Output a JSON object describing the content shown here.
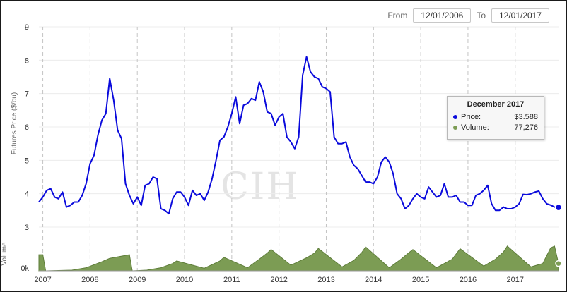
{
  "range": {
    "from_label": "From",
    "from_value": "12/01/2006",
    "to_label": "To",
    "to_value": "12/01/2017"
  },
  "watermark": "CIH",
  "tooltip": {
    "title": "December 2017",
    "price_label": "Price:",
    "price_value": "$3.588",
    "volume_label": "Volume:",
    "volume_value": "77,276"
  },
  "colors": {
    "price_line": "#0a0adc",
    "volume_fill": "#7c9c54",
    "volume_stroke": "#5e7d3a"
  },
  "chart_data": [
    {
      "type": "line",
      "ylabel": "Futures Price ($/bu)",
      "ylim": [
        3,
        9
      ],
      "yticks": [
        3,
        4,
        5,
        6,
        7,
        8,
        9
      ],
      "x_range": [
        "2006-12",
        "2017-12"
      ],
      "xticks": [
        "2007",
        "2008",
        "2009",
        "2010",
        "2011",
        "2012",
        "2013",
        "2014",
        "2015",
        "2016",
        "2017"
      ],
      "grid": true,
      "series": [
        {
          "x": [
            "2006-12",
            "2007-01",
            "2007-02",
            "2007-03",
            "2007-04",
            "2007-05",
            "2007-06",
            "2007-07",
            "2007-08",
            "2007-09",
            "2007-10",
            "2007-11",
            "2007-12",
            "2008-01",
            "2008-02",
            "2008-03",
            "2008-04",
            "2008-05",
            "2008-06",
            "2008-07",
            "2008-08",
            "2008-09",
            "2008-10",
            "2008-11",
            "2008-12",
            "2009-01",
            "2009-02",
            "2009-03",
            "2009-04",
            "2009-05",
            "2009-06",
            "2009-07",
            "2009-08",
            "2009-09",
            "2009-10",
            "2009-11",
            "2009-12",
            "2010-01",
            "2010-02",
            "2010-03",
            "2010-04",
            "2010-05",
            "2010-06",
            "2010-07",
            "2010-08",
            "2010-09",
            "2010-10",
            "2010-11",
            "2010-12",
            "2011-01",
            "2011-02",
            "2011-03",
            "2011-04",
            "2011-05",
            "2011-06",
            "2011-07",
            "2011-08",
            "2011-09",
            "2011-10",
            "2011-11",
            "2011-12",
            "2012-01",
            "2012-02",
            "2012-03",
            "2012-04",
            "2012-05",
            "2012-06",
            "2012-07",
            "2012-08",
            "2012-09",
            "2012-10",
            "2012-11",
            "2012-12",
            "2013-01",
            "2013-02",
            "2013-03",
            "2013-04",
            "2013-05",
            "2013-06",
            "2013-07",
            "2013-08",
            "2013-09",
            "2013-10",
            "2013-11",
            "2013-12",
            "2014-01",
            "2014-02",
            "2014-03",
            "2014-04",
            "2014-05",
            "2014-06",
            "2014-07",
            "2014-08",
            "2014-09",
            "2014-10",
            "2014-11",
            "2014-12",
            "2015-01",
            "2015-02",
            "2015-03",
            "2015-04",
            "2015-05",
            "2015-06",
            "2015-07",
            "2015-08",
            "2015-09",
            "2015-10",
            "2015-11",
            "2015-12",
            "2016-01",
            "2016-02",
            "2016-03",
            "2016-04",
            "2016-05",
            "2016-06",
            "2016-07",
            "2016-08",
            "2016-09",
            "2016-10",
            "2016-11",
            "2016-12",
            "2017-01",
            "2017-02",
            "2017-03",
            "2017-04",
            "2017-05",
            "2017-06",
            "2017-07",
            "2017-08",
            "2017-09",
            "2017-10",
            "2017-11",
            "2017-12"
          ],
          "values": [
            3.75,
            3.9,
            4.1,
            4.15,
            3.9,
            3.85,
            4.05,
            3.6,
            3.65,
            3.75,
            3.75,
            3.95,
            4.3,
            4.9,
            5.15,
            5.75,
            6.2,
            6.4,
            7.45,
            6.8,
            5.9,
            5.65,
            4.3,
            3.95,
            3.7,
            3.9,
            3.65,
            4.25,
            4.3,
            4.5,
            4.45,
            3.55,
            3.5,
            3.4,
            3.85,
            4.05,
            4.05,
            3.9,
            3.65,
            4.1,
            3.95,
            4.0,
            3.8,
            4.05,
            4.45,
            5.0,
            5.6,
            5.7,
            6.0,
            6.4,
            6.9,
            6.1,
            6.65,
            6.7,
            6.85,
            6.8,
            7.35,
            7.05,
            6.45,
            6.4,
            6.05,
            6.3,
            6.4,
            5.7,
            5.55,
            5.35,
            5.7,
            7.55,
            8.1,
            7.65,
            7.5,
            7.45,
            7.2,
            7.15,
            7.05,
            5.7,
            5.5,
            5.5,
            5.55,
            5.1,
            4.85,
            4.75,
            4.55,
            4.35,
            4.35,
            4.3,
            4.5,
            4.95,
            5.1,
            4.95,
            4.6,
            4.0,
            3.85,
            3.55,
            3.65,
            3.85,
            4.0,
            3.9,
            3.85,
            4.2,
            4.05,
            3.9,
            3.95,
            4.3,
            3.9,
            3.9,
            3.95,
            3.75,
            3.75,
            3.65,
            3.65,
            3.95,
            4.0,
            4.1,
            4.25,
            3.7,
            3.5,
            3.5,
            3.6,
            3.55,
            3.55,
            3.6,
            3.7,
            3.98,
            3.97,
            4.0,
            4.05,
            4.08,
            3.85,
            3.7,
            3.66,
            3.6,
            3.588
          ]
        }
      ]
    },
    {
      "type": "area",
      "ylabel": "Volume",
      "yticks_labels": [
        "0k"
      ],
      "series": [
        {
          "name": "Volume",
          "peaks": [
            {
              "x": "2006-12",
              "level": 0.62
            },
            {
              "x": "2007-01",
              "level": 0.62
            },
            {
              "x": "2007-12",
              "level": 0.12
            },
            {
              "x": "2008-04",
              "level": 0.35
            },
            {
              "x": "2008-06",
              "level": 0.48
            },
            {
              "x": "2008-11",
              "level": 0.62
            },
            {
              "x": "2009-07",
              "level": 0.12
            },
            {
              "x": "2009-10",
              "level": 0.28
            },
            {
              "x": "2009-11",
              "level": 0.38
            },
            {
              "x": "2010-06",
              "level": 0.1
            },
            {
              "x": "2010-10",
              "level": 0.38
            },
            {
              "x": "2010-11",
              "level": 0.52
            },
            {
              "x": "2011-05",
              "level": 0.12
            },
            {
              "x": "2011-08",
              "level": 0.45
            },
            {
              "x": "2011-10",
              "level": 0.68
            },
            {
              "x": "2011-11",
              "level": 0.82
            },
            {
              "x": "2012-04",
              "level": 0.22
            },
            {
              "x": "2012-08",
              "level": 0.5
            },
            {
              "x": "2012-10",
              "level": 0.68
            },
            {
              "x": "2012-11",
              "level": 0.86
            },
            {
              "x": "2013-05",
              "level": 0.15
            },
            {
              "x": "2013-08",
              "level": 0.4
            },
            {
              "x": "2013-10",
              "level": 0.7
            },
            {
              "x": "2013-11",
              "level": 0.92
            },
            {
              "x": "2014-05",
              "level": 0.12
            },
            {
              "x": "2014-08",
              "level": 0.45
            },
            {
              "x": "2014-10",
              "level": 0.7
            },
            {
              "x": "2014-11",
              "level": 0.82
            },
            {
              "x": "2015-05",
              "level": 0.12
            },
            {
              "x": "2015-09",
              "level": 0.45
            },
            {
              "x": "2015-11",
              "level": 0.85
            },
            {
              "x": "2016-05",
              "level": 0.18
            },
            {
              "x": "2016-08",
              "level": 0.45
            },
            {
              "x": "2016-10",
              "level": 0.72
            },
            {
              "x": "2016-11",
              "level": 0.95
            },
            {
              "x": "2017-05",
              "level": 0.15
            },
            {
              "x": "2017-08",
              "level": 0.28
            },
            {
              "x": "2017-10",
              "level": 0.88
            },
            {
              "x": "2017-11",
              "level": 0.95
            },
            {
              "x": "2017-12",
              "level": 0.28
            }
          ]
        }
      ]
    }
  ]
}
